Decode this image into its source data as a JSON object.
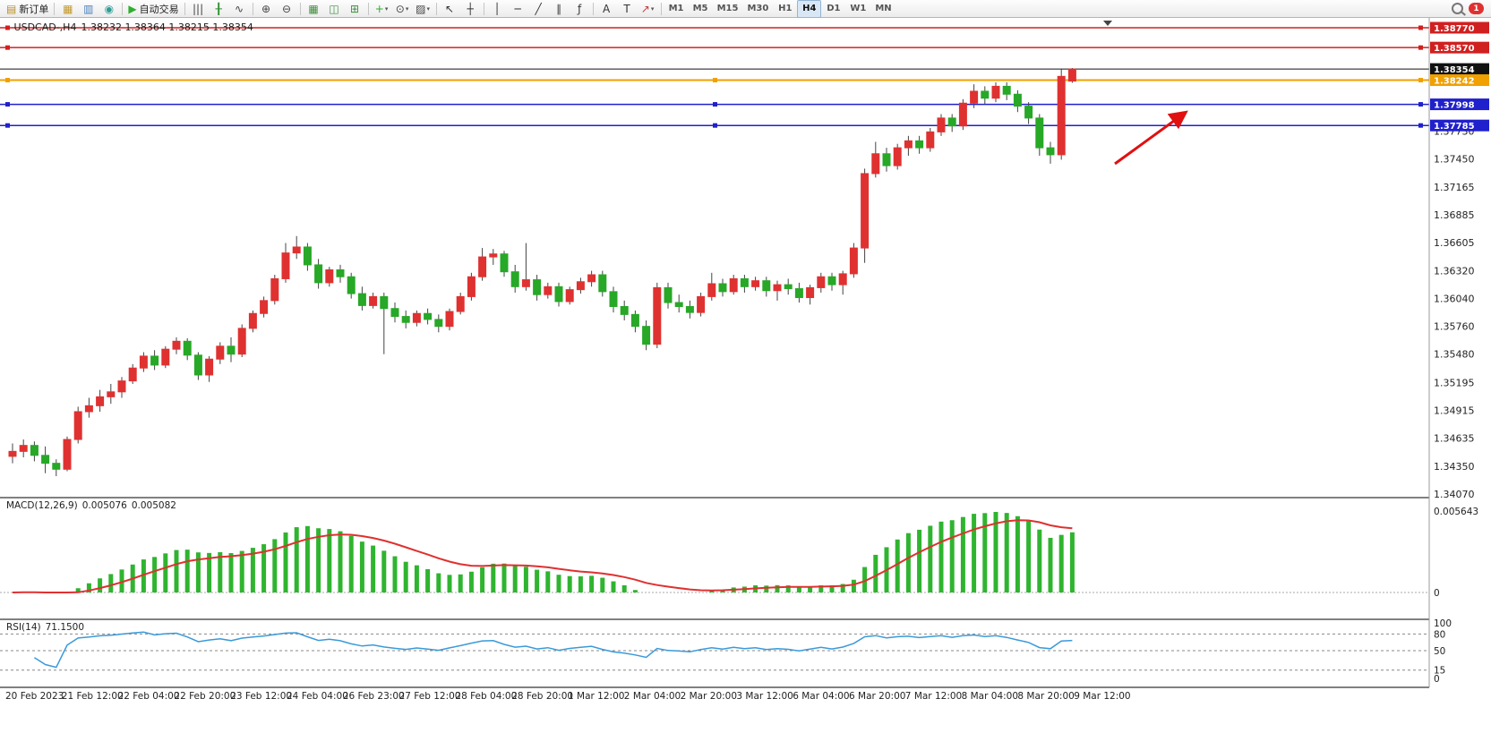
{
  "toolbar": {
    "groups": [
      [
        {
          "name": "new-order-button",
          "glyph": "▤",
          "glyph_color": "#b98f2d",
          "label": "新订单"
        }
      ],
      [
        {
          "name": "new-chart-icon",
          "glyph": "▦",
          "glyph_color": "#c39a2f"
        },
        {
          "name": "data-window-icon",
          "glyph": "▥",
          "glyph_color": "#4a7ebb"
        },
        {
          "name": "navigator-icon",
          "glyph": "◉",
          "glyph_color": "#2e9e97"
        }
      ],
      [
        {
          "name": "autotrading-button",
          "glyph": "▶",
          "glyph_color": "#2fae2f",
          "label": "自动交易"
        }
      ],
      [
        {
          "name": "bar-chart-button",
          "glyph": "|||",
          "glyph_color": "#444444"
        },
        {
          "name": "candlestick-button",
          "glyph": "╂",
          "glyph_color": "#2f8f2f"
        },
        {
          "name": "line-chart-button",
          "glyph": "∿",
          "glyph_color": "#444444"
        }
      ],
      [
        {
          "name": "zoom-in-button",
          "glyph": "⊕",
          "glyph_color": "#444444"
        },
        {
          "name": "zoom-out-button",
          "glyph": "⊖",
          "glyph_color": "#444444"
        }
      ],
      [
        {
          "name": "tile-windows-icon",
          "glyph": "▦",
          "glyph_color": "#3f8f3f"
        },
        {
          "name": "cascade-windows-icon",
          "glyph": "◫",
          "glyph_color": "#3f8f3f"
        },
        {
          "name": "arrange-windows-icon",
          "glyph": "⊞",
          "glyph_color": "#3f8f3f"
        }
      ],
      [
        {
          "name": "indicators-button",
          "glyph": "+",
          "glyph_color": "#2fae2f",
          "caret": true
        },
        {
          "name": "periods-button",
          "glyph": "⊙",
          "glyph_color": "#444444",
          "caret": true
        },
        {
          "name": "templates-button",
          "glyph": "▨",
          "glyph_color": "#444444",
          "caret": true
        }
      ],
      [
        {
          "name": "cursor-button",
          "glyph": "↖",
          "glyph_color": "#333333"
        },
        {
          "name": "crosshair-button",
          "glyph": "┼",
          "glyph_color": "#333333"
        }
      ],
      [
        {
          "name": "vertical-line-button",
          "glyph": "│",
          "glyph_color": "#333333"
        },
        {
          "name": "horizontal-line-button",
          "glyph": "─",
          "glyph_color": "#333333"
        },
        {
          "name": "trendline-button",
          "glyph": "╱",
          "glyph_color": "#333333"
        },
        {
          "name": "channel-button",
          "glyph": "∥",
          "glyph_color": "#333333"
        },
        {
          "name": "fibonacci-button",
          "glyph": "ƒ",
          "glyph_color": "#333333"
        }
      ],
      [
        {
          "name": "text-button",
          "glyph": "A",
          "glyph_color": "#333333"
        },
        {
          "name": "label-button",
          "glyph": "T",
          "glyph_color": "#333333"
        },
        {
          "name": "arrows-button",
          "glyph": "↗",
          "glyph_color": "#c04040",
          "caret": true
        }
      ]
    ],
    "timeframes": [
      "M1",
      "M5",
      "M15",
      "M30",
      "H1",
      "H4",
      "D1",
      "W1",
      "MN"
    ],
    "active_timeframe": "H4",
    "right": {
      "badge": "1"
    }
  },
  "chart_data": {
    "type": "candlestick",
    "symbol": "USDCAD",
    "period": "H4",
    "title": {
      "symbol_period": "USDCAD-,H4",
      "ohlc": "1.38232 1.38364 1.38215 1.38354"
    },
    "ylim": [
      1.3407,
      1.3877
    ],
    "price_axis": {
      "ticks": [
        "1.37730",
        "1.37450",
        "1.37165",
        "1.36885",
        "1.36605",
        "1.36320",
        "1.36040",
        "1.35760",
        "1.35480",
        "1.35195",
        "1.34915",
        "1.34635",
        "1.34350",
        "1.34070"
      ]
    },
    "price_lines": [
      {
        "price": 1.3877,
        "label": "1.38770",
        "color": "#d02020",
        "width": 1.5,
        "handles": "ends"
      },
      {
        "price": 1.3857,
        "label": "1.38570",
        "color": "#d02020",
        "width": 1.5,
        "handles": "ends"
      },
      {
        "price": 1.38354,
        "label": "1.38354",
        "color": "#111111",
        "width": 1,
        "handles": "none"
      },
      {
        "price": 1.38242,
        "label": "1.38242",
        "color": "#f0a000",
        "width": 2,
        "handles": "full"
      },
      {
        "price": 1.37998,
        "label": "1.37998",
        "color": "#2020cc",
        "width": 1.5,
        "handles": "full"
      },
      {
        "price": 1.37785,
        "label": "1.37785",
        "color": "#2020cc",
        "width": 1.5,
        "handles": "full"
      }
    ],
    "time_labels": [
      "20 Feb 2023",
      "21 Feb 12:00",
      "22 Feb 04:00",
      "22 Feb 20:00",
      "23 Feb 12:00",
      "24 Feb 04:00",
      "26 Feb 23:00",
      "27 Feb 12:00",
      "28 Feb 04:00",
      "28 Feb 20:00",
      "1 Mar 12:00",
      "2 Mar 04:00",
      "2 Mar 20:00",
      "3 Mar 12:00",
      "6 Mar 04:00",
      "6 Mar 20:00",
      "7 Mar 12:00",
      "8 Mar 04:00",
      "8 Mar 20:00",
      "9 Mar 12:00"
    ],
    "candles": [
      [
        1.3445,
        1.3458,
        1.3438,
        1.345
      ],
      [
        1.345,
        1.3462,
        1.3444,
        1.3456
      ],
      [
        1.3456,
        1.346,
        1.344,
        1.3446
      ],
      [
        1.3446,
        1.3455,
        1.3428,
        1.3438
      ],
      [
        1.3438,
        1.3442,
        1.3425,
        1.3432
      ],
      [
        1.3432,
        1.3465,
        1.343,
        1.3462
      ],
      [
        1.3462,
        1.3495,
        1.3458,
        1.349
      ],
      [
        1.349,
        1.3504,
        1.3484,
        1.3496
      ],
      [
        1.3496,
        1.3512,
        1.349,
        1.3505
      ],
      [
        1.3505,
        1.3518,
        1.3498,
        1.351
      ],
      [
        1.351,
        1.3525,
        1.3504,
        1.3521
      ],
      [
        1.3521,
        1.3538,
        1.3518,
        1.3534
      ],
      [
        1.3534,
        1.355,
        1.353,
        1.3546
      ],
      [
        1.3546,
        1.3552,
        1.3532,
        1.3537
      ],
      [
        1.3537,
        1.3556,
        1.3534,
        1.3553
      ],
      [
        1.3553,
        1.3565,
        1.3548,
        1.3561
      ],
      [
        1.3561,
        1.3564,
        1.3542,
        1.3547
      ],
      [
        1.3547,
        1.355,
        1.3522,
        1.3527
      ],
      [
        1.3527,
        1.3546,
        1.352,
        1.3543
      ],
      [
        1.3543,
        1.356,
        1.3538,
        1.3556
      ],
      [
        1.3556,
        1.3565,
        1.354,
        1.3548
      ],
      [
        1.3548,
        1.3578,
        1.3545,
        1.3574
      ],
      [
        1.3574,
        1.3592,
        1.357,
        1.3589
      ],
      [
        1.3589,
        1.3606,
        1.3585,
        1.3602
      ],
      [
        1.3602,
        1.3628,
        1.3598,
        1.3624
      ],
      [
        1.3624,
        1.366,
        1.362,
        1.365
      ],
      [
        1.365,
        1.3667,
        1.3644,
        1.3656
      ],
      [
        1.3656,
        1.366,
        1.3632,
        1.3638
      ],
      [
        1.3638,
        1.3644,
        1.3614,
        1.362
      ],
      [
        1.362,
        1.3636,
        1.3616,
        1.3633
      ],
      [
        1.3633,
        1.3638,
        1.362,
        1.3626
      ],
      [
        1.3626,
        1.363,
        1.3604,
        1.3609
      ],
      [
        1.3609,
        1.3616,
        1.3592,
        1.3597
      ],
      [
        1.3597,
        1.361,
        1.3594,
        1.3606
      ],
      [
        1.3606,
        1.361,
        1.3548,
        1.3594
      ],
      [
        1.3594,
        1.36,
        1.358,
        1.3586
      ],
      [
        1.3586,
        1.3592,
        1.3574,
        1.358
      ],
      [
        1.358,
        1.3592,
        1.3576,
        1.3589
      ],
      [
        1.3589,
        1.3594,
        1.3578,
        1.3583
      ],
      [
        1.3583,
        1.3588,
        1.357,
        1.3576
      ],
      [
        1.3576,
        1.3594,
        1.3572,
        1.3591
      ],
      [
        1.3591,
        1.361,
        1.3588,
        1.3606
      ],
      [
        1.3606,
        1.363,
        1.3602,
        1.3626
      ],
      [
        1.3626,
        1.3655,
        1.3622,
        1.3646
      ],
      [
        1.3646,
        1.3654,
        1.3638,
        1.3649
      ],
      [
        1.3649,
        1.3652,
        1.3626,
        1.3631
      ],
      [
        1.3631,
        1.3638,
        1.361,
        1.3616
      ],
      [
        1.3616,
        1.366,
        1.3612,
        1.3623
      ],
      [
        1.3623,
        1.3628,
        1.3602,
        1.3608
      ],
      [
        1.3608,
        1.362,
        1.3604,
        1.3616
      ],
      [
        1.3616,
        1.362,
        1.3596,
        1.3601
      ],
      [
        1.3601,
        1.3616,
        1.3598,
        1.3613
      ],
      [
        1.3613,
        1.3625,
        1.3609,
        1.3621
      ],
      [
        1.3621,
        1.3632,
        1.3616,
        1.3628
      ],
      [
        1.3628,
        1.3632,
        1.3606,
        1.3611
      ],
      [
        1.3611,
        1.3616,
        1.359,
        1.3596
      ],
      [
        1.3596,
        1.3602,
        1.3582,
        1.3588
      ],
      [
        1.3588,
        1.3592,
        1.357,
        1.3576
      ],
      [
        1.3576,
        1.3582,
        1.3552,
        1.3558
      ],
      [
        1.3558,
        1.362,
        1.3554,
        1.3615
      ],
      [
        1.3615,
        1.362,
        1.3594,
        1.36
      ],
      [
        1.36,
        1.3608,
        1.359,
        1.3596
      ],
      [
        1.3596,
        1.3602,
        1.3584,
        1.359
      ],
      [
        1.359,
        1.361,
        1.3586,
        1.3606
      ],
      [
        1.3606,
        1.363,
        1.3602,
        1.3619
      ],
      [
        1.3619,
        1.3624,
        1.3606,
        1.3611
      ],
      [
        1.3611,
        1.3628,
        1.3608,
        1.3624
      ],
      [
        1.3624,
        1.3628,
        1.361,
        1.3616
      ],
      [
        1.3616,
        1.3626,
        1.3612,
        1.3622
      ],
      [
        1.3622,
        1.3626,
        1.3606,
        1.3612
      ],
      [
        1.3612,
        1.3622,
        1.3602,
        1.3618
      ],
      [
        1.3618,
        1.3624,
        1.3608,
        1.3614
      ],
      [
        1.3614,
        1.362,
        1.36,
        1.3605
      ],
      [
        1.3605,
        1.3618,
        1.3598,
        1.3615
      ],
      [
        1.3615,
        1.363,
        1.361,
        1.3626
      ],
      [
        1.3626,
        1.363,
        1.3612,
        1.3618
      ],
      [
        1.3618,
        1.3632,
        1.3608,
        1.3629
      ],
      [
        1.3629,
        1.366,
        1.3625,
        1.3655
      ],
      [
        1.3655,
        1.3735,
        1.364,
        1.373
      ],
      [
        1.373,
        1.3762,
        1.3726,
        1.375
      ],
      [
        1.375,
        1.3756,
        1.3732,
        1.3738
      ],
      [
        1.3738,
        1.376,
        1.3734,
        1.3756
      ],
      [
        1.3756,
        1.3768,
        1.3748,
        1.3763
      ],
      [
        1.3763,
        1.3768,
        1.375,
        1.3756
      ],
      [
        1.3756,
        1.3776,
        1.3752,
        1.3772
      ],
      [
        1.3772,
        1.379,
        1.3768,
        1.3786
      ],
      [
        1.3786,
        1.379,
        1.3772,
        1.3778
      ],
      [
        1.3778,
        1.3805,
        1.3774,
        1.3801
      ],
      [
        1.3801,
        1.382,
        1.3796,
        1.3813
      ],
      [
        1.3813,
        1.3818,
        1.38,
        1.3806
      ],
      [
        1.3806,
        1.3822,
        1.3802,
        1.3818
      ],
      [
        1.3818,
        1.3822,
        1.3804,
        1.381
      ],
      [
        1.381,
        1.3814,
        1.3792,
        1.3798
      ],
      [
        1.3798,
        1.3802,
        1.378,
        1.3786
      ],
      [
        1.3786,
        1.379,
        1.3748,
        1.3756
      ],
      [
        1.3756,
        1.3762,
        1.374,
        1.3749
      ],
      [
        1.3749,
        1.3835,
        1.3744,
        1.3828
      ],
      [
        1.38232,
        1.38364,
        1.38215,
        1.38354
      ]
    ],
    "indicators": {
      "macd": {
        "label": "MACD(12,26,9)",
        "value_main": "0.005076",
        "value_signal": "0.005082",
        "axis_max": "0.005643",
        "axis_min": "0",
        "params": [
          12,
          26,
          9
        ]
      },
      "rsi": {
        "label": "RSI(14)",
        "value": "71.1500",
        "levels": [
          80,
          50,
          15
        ],
        "axis_labels": [
          "100",
          "80",
          "50",
          "15",
          "0"
        ]
      }
    },
    "annotations": [
      {
        "type": "arrow",
        "color": "#e01010",
        "from": [
          1245,
          183
        ],
        "to": [
          1322,
          127
        ]
      }
    ],
    "colors": {
      "bull": "#e03131",
      "bear": "#27a827",
      "wick": "#444444",
      "macd_hist": "#2fb42f",
      "macd_signal": "#e03030",
      "rsi_line": "#3b9ad9"
    }
  }
}
